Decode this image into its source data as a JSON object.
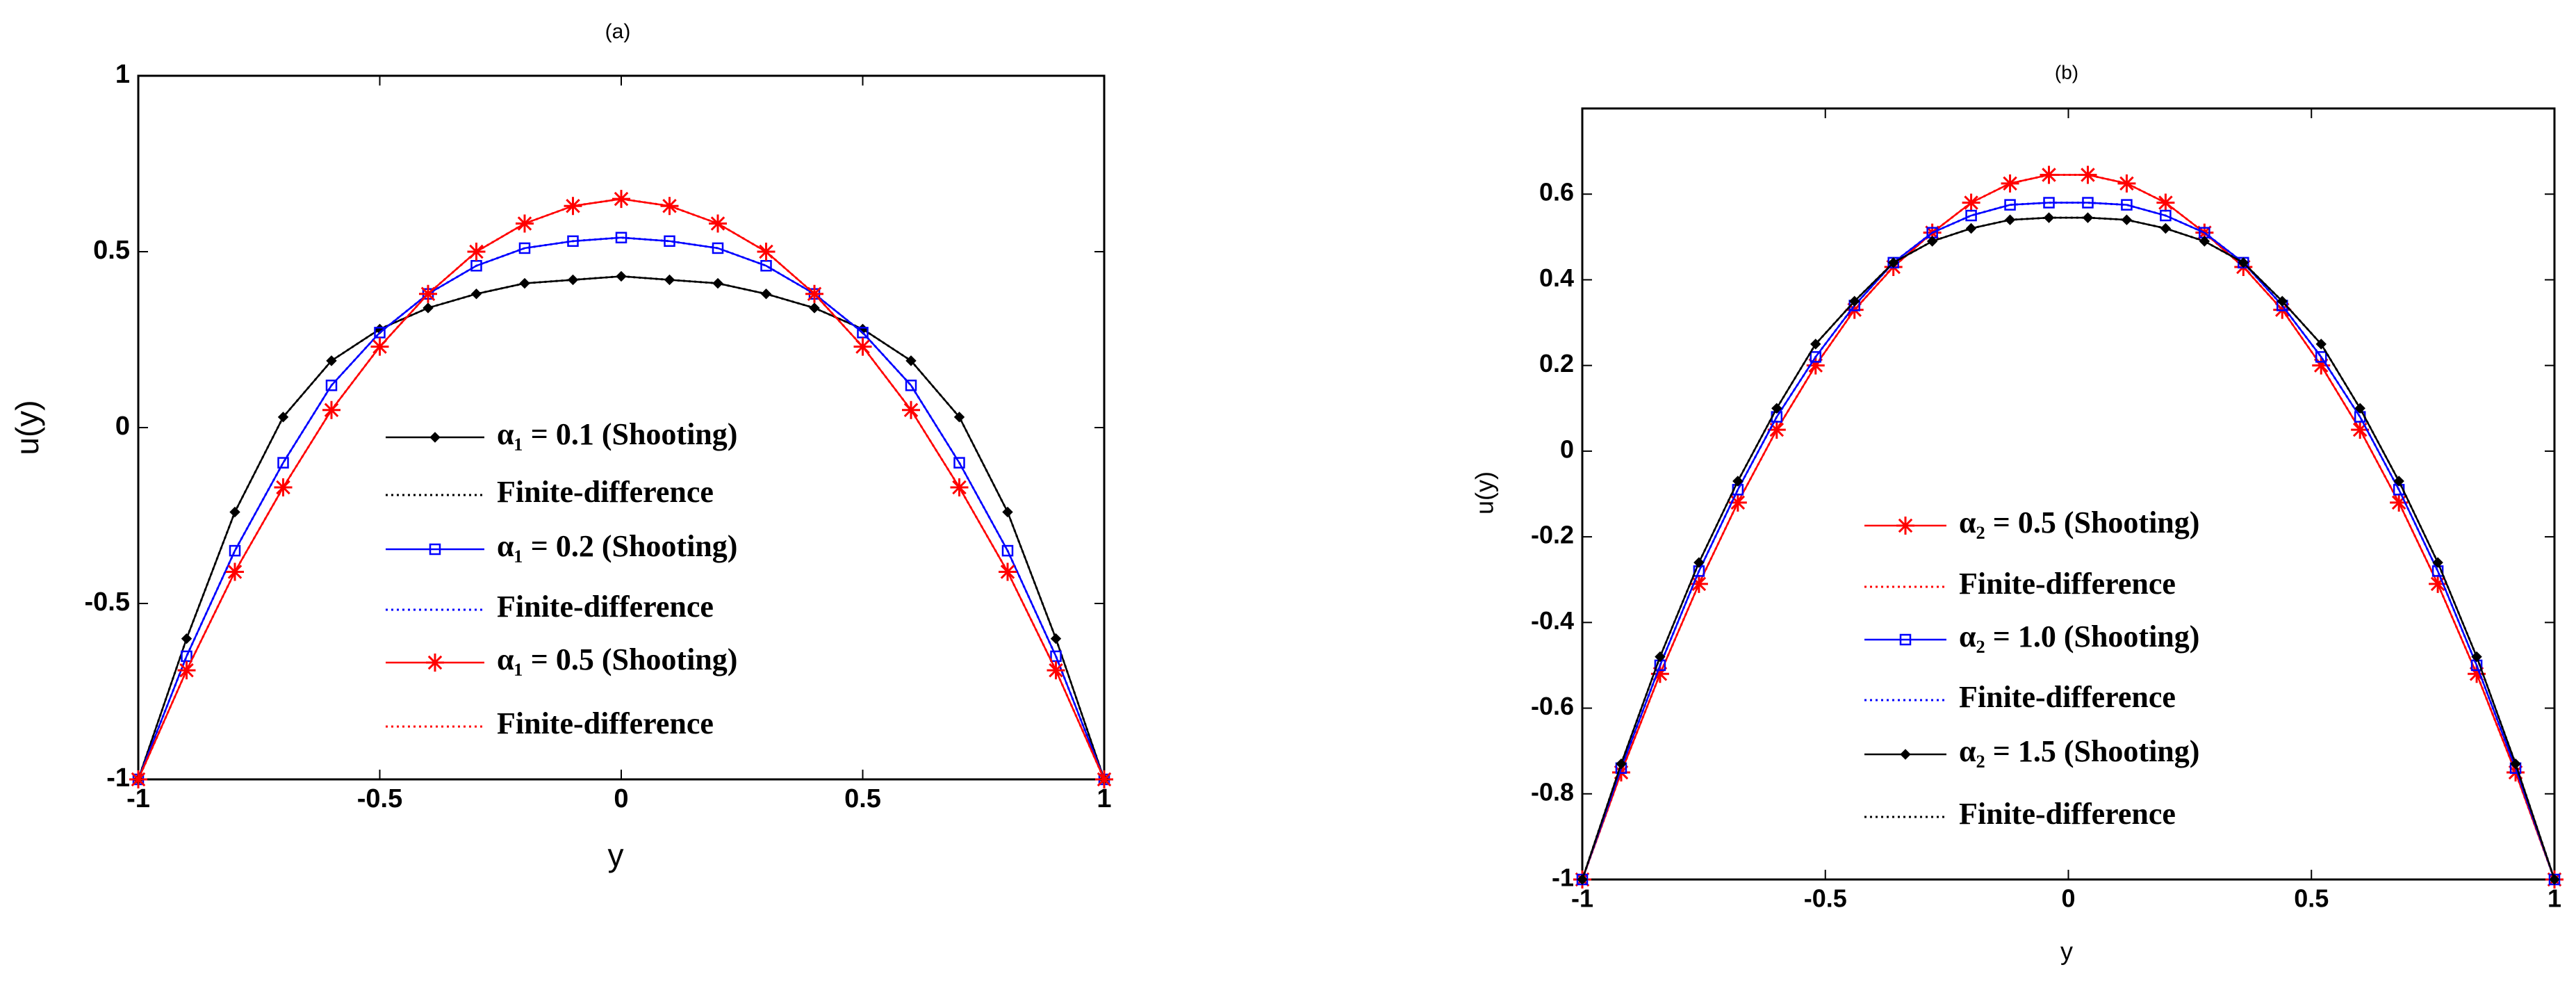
{
  "chart_data": [
    {
      "type": "line",
      "title": "(a)",
      "x_label": "y",
      "y_label": "u(y)",
      "xlim": [
        -1,
        1
      ],
      "ylim": [
        -1,
        1
      ],
      "xticks": [
        -1,
        -0.5,
        0,
        0.5,
        1
      ],
      "yticks": [
        -1,
        -0.5,
        0,
        0.5,
        1
      ],
      "x": [
        -1,
        -0.9,
        -0.8,
        -0.7,
        -0.6,
        -0.5,
        -0.4,
        -0.3,
        -0.2,
        -0.1,
        0,
        0.1,
        0.2,
        0.3,
        0.4,
        0.5,
        0.6,
        0.7,
        0.8,
        0.9,
        1
      ],
      "series": [
        {
          "name": "α₁ = 0.1 (Shooting)",
          "color": "#000000",
          "marker": "diamond",
          "linestyle": "solid",
          "values": [
            -1,
            -0.6,
            -0.24,
            0.03,
            0.19,
            0.28,
            0.34,
            0.38,
            0.41,
            0.42,
            0.43,
            0.42,
            0.41,
            0.38,
            0.34,
            0.28,
            0.19,
            0.03,
            -0.24,
            -0.6,
            -1
          ]
        },
        {
          "name": "Finite-difference",
          "color": "#000000",
          "linestyle": "dotted",
          "values": [
            -1,
            -0.6,
            -0.24,
            0.03,
            0.19,
            0.28,
            0.34,
            0.38,
            0.41,
            0.42,
            0.43,
            0.42,
            0.41,
            0.38,
            0.34,
            0.28,
            0.19,
            0.03,
            -0.24,
            -0.6,
            -1
          ]
        },
        {
          "name": "α₁ = 0.2 (Shooting)",
          "color": "#0000ff",
          "marker": "square",
          "linestyle": "solid",
          "values": [
            -1,
            -0.65,
            -0.35,
            -0.1,
            0.12,
            0.27,
            0.38,
            0.46,
            0.51,
            0.53,
            0.54,
            0.53,
            0.51,
            0.46,
            0.38,
            0.27,
            0.12,
            -0.1,
            -0.35,
            -0.65,
            -1
          ]
        },
        {
          "name": "Finite-difference",
          "color": "#0000ff",
          "linestyle": "dotted",
          "values": [
            -1,
            -0.65,
            -0.35,
            -0.1,
            0.12,
            0.27,
            0.38,
            0.46,
            0.51,
            0.53,
            0.54,
            0.53,
            0.51,
            0.46,
            0.38,
            0.27,
            0.12,
            -0.1,
            -0.35,
            -0.65,
            -1
          ]
        },
        {
          "name": "α₁ = 0.5 (Shooting)",
          "color": "#ff0000",
          "marker": "star",
          "linestyle": "solid",
          "values": [
            -1,
            -0.69,
            -0.41,
            -0.17,
            0.05,
            0.23,
            0.38,
            0.5,
            0.58,
            0.63,
            0.65,
            0.63,
            0.58,
            0.5,
            0.38,
            0.23,
            0.05,
            -0.17,
            -0.41,
            -0.69,
            -1
          ]
        },
        {
          "name": "Finite-difference",
          "color": "#ff0000",
          "linestyle": "dotted",
          "values": [
            -1,
            -0.69,
            -0.41,
            -0.17,
            0.05,
            0.23,
            0.38,
            0.5,
            0.58,
            0.63,
            0.65,
            0.63,
            0.58,
            0.5,
            0.38,
            0.23,
            0.05,
            -0.17,
            -0.41,
            -0.69,
            -1
          ]
        }
      ]
    },
    {
      "type": "line",
      "title": "(b)",
      "x_label": "y",
      "y_label": "u(y)",
      "xlim": [
        -1,
        1
      ],
      "ylim": [
        -1,
        0.8
      ],
      "xticks": [
        -1,
        -0.5,
        0,
        0.5,
        1
      ],
      "yticks": [
        -1,
        -0.8,
        -0.6,
        -0.4,
        -0.2,
        0,
        0.2,
        0.4,
        0.6
      ],
      "x": [
        -1,
        -0.92,
        -0.84,
        -0.76,
        -0.68,
        -0.6,
        -0.52,
        -0.44,
        -0.36,
        -0.28,
        -0.2,
        -0.12,
        -0.04,
        0.04,
        0.12,
        0.2,
        0.28,
        0.36,
        0.44,
        0.52,
        0.6,
        0.68,
        0.76,
        0.84,
        0.92,
        1
      ],
      "series": [
        {
          "name": "α₂ = 0.5 (Shooting)",
          "color": "#ff0000",
          "marker": "star",
          "linestyle": "solid",
          "values": [
            -1,
            -0.75,
            -0.52,
            -0.31,
            -0.12,
            0.05,
            0.2,
            0.33,
            0.43,
            0.51,
            0.58,
            0.625,
            0.645,
            0.645,
            0.625,
            0.58,
            0.51,
            0.43,
            0.33,
            0.2,
            0.05,
            -0.12,
            -0.31,
            -0.52,
            -0.75,
            -1
          ]
        },
        {
          "name": "Finite-difference",
          "color": "#ff0000",
          "linestyle": "dotted",
          "values": [
            -1,
            -0.75,
            -0.52,
            -0.31,
            -0.12,
            0.05,
            0.2,
            0.33,
            0.43,
            0.51,
            0.58,
            0.625,
            0.645,
            0.645,
            0.625,
            0.58,
            0.51,
            0.43,
            0.33,
            0.2,
            0.05,
            -0.12,
            -0.31,
            -0.52,
            -0.75,
            -1
          ]
        },
        {
          "name": "α₂ = 1.0 (Shooting)",
          "color": "#0000ff",
          "marker": "square",
          "linestyle": "solid",
          "values": [
            -1,
            -0.74,
            -0.5,
            -0.28,
            -0.09,
            0.08,
            0.22,
            0.34,
            0.44,
            0.51,
            0.55,
            0.575,
            0.58,
            0.58,
            0.575,
            0.55,
            0.51,
            0.44,
            0.34,
            0.22,
            0.08,
            -0.09,
            -0.28,
            -0.5,
            -0.74,
            -1
          ]
        },
        {
          "name": "Finite-difference",
          "color": "#0000ff",
          "linestyle": "dotted",
          "values": [
            -1,
            -0.74,
            -0.5,
            -0.28,
            -0.09,
            0.08,
            0.22,
            0.34,
            0.44,
            0.51,
            0.55,
            0.575,
            0.58,
            0.58,
            0.575,
            0.55,
            0.51,
            0.44,
            0.34,
            0.22,
            0.08,
            -0.09,
            -0.28,
            -0.5,
            -0.74,
            -1
          ]
        },
        {
          "name": "α₂ = 1.5 (Shooting)",
          "color": "#000000",
          "marker": "diamond",
          "linestyle": "solid",
          "values": [
            -1,
            -0.73,
            -0.48,
            -0.26,
            -0.07,
            0.1,
            0.25,
            0.35,
            0.44,
            0.49,
            0.52,
            0.54,
            0.545,
            0.545,
            0.54,
            0.52,
            0.49,
            0.44,
            0.35,
            0.25,
            0.1,
            -0.07,
            -0.26,
            -0.48,
            -0.73,
            -1
          ]
        },
        {
          "name": "Finite-difference",
          "color": "#000000",
          "linestyle": "dotted",
          "values": [
            -1,
            -0.73,
            -0.48,
            -0.26,
            -0.07,
            0.1,
            0.25,
            0.35,
            0.44,
            0.49,
            0.52,
            0.54,
            0.545,
            0.545,
            0.54,
            0.52,
            0.49,
            0.44,
            0.35,
            0.25,
            0.1,
            -0.07,
            -0.26,
            -0.48,
            -0.73,
            -1
          ]
        }
      ]
    }
  ]
}
